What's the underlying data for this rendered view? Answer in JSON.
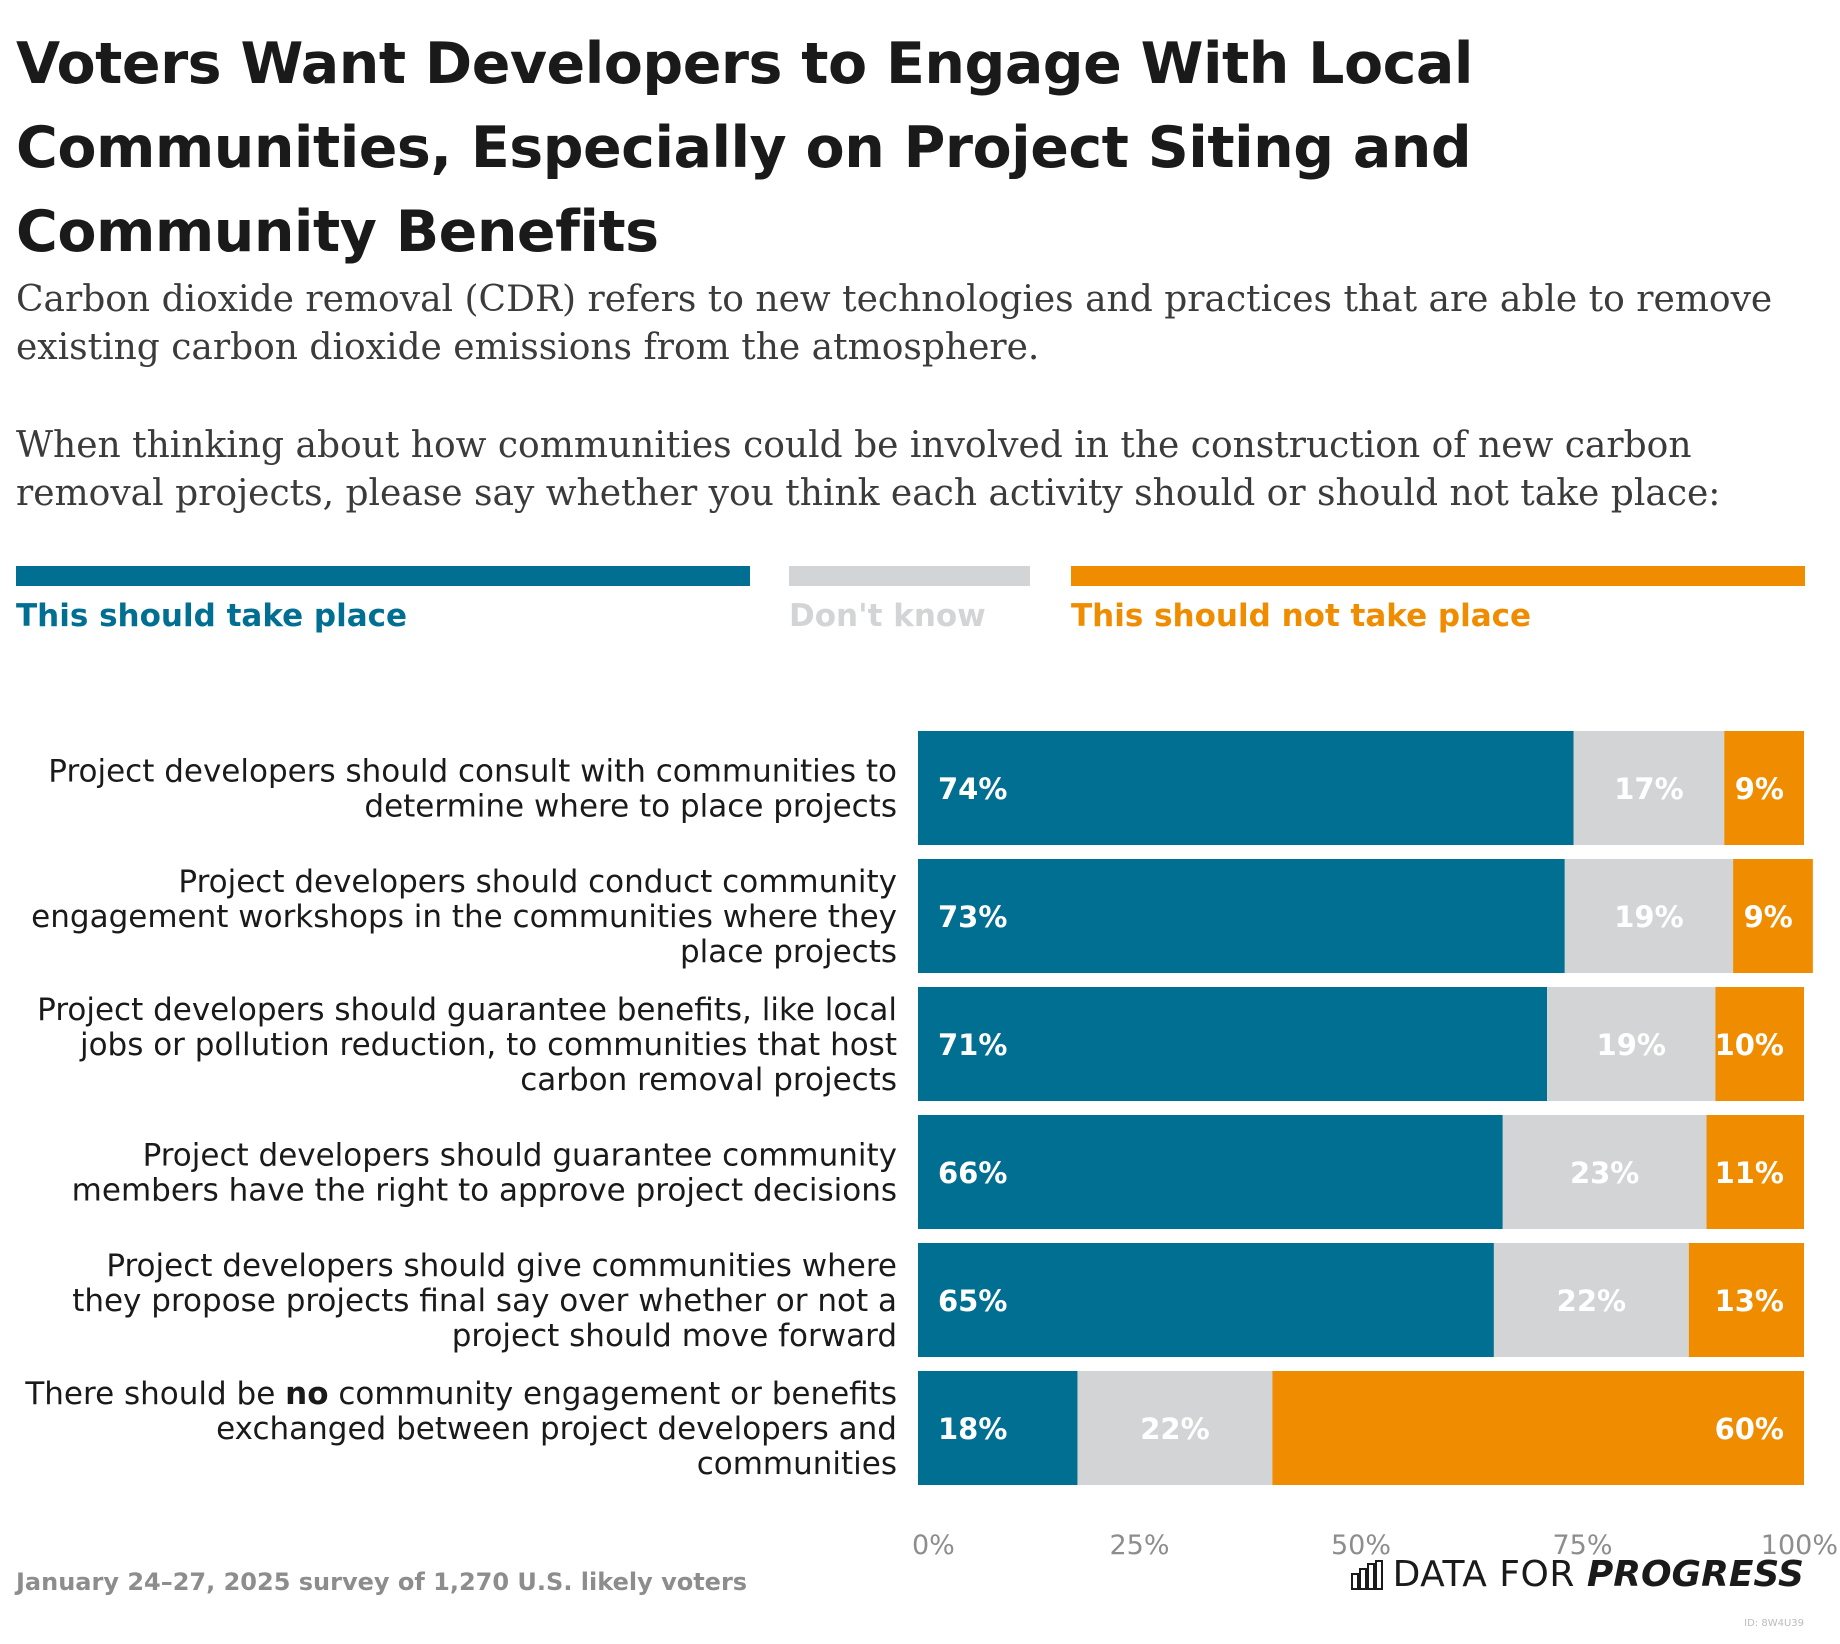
{
  "title": "Voters Want Developers to Engage With Local Communities, Especially on Project Siting and Community Benefits",
  "description": {
    "intro": "Carbon dioxide removal (CDR) refers to new technologies and practices that are able to remove existing carbon dioxide emissions from the atmosphere.",
    "question": "When thinking about how communities could be involved in the construction of new carbon removal projects, please say whether you think each activity should or should not take place:"
  },
  "legend": {
    "support": "This should take place",
    "dontknow": "Don't know",
    "oppose": "This should not take place"
  },
  "colors": {
    "support": "#006f91",
    "dontknow": "#d3d4d5",
    "oppose": "#f08c00",
    "title": "#1a1a1a",
    "muted": "#8d8d8d"
  },
  "chart_data": {
    "type": "bar",
    "orientation": "horizontal",
    "stacked": true,
    "title": "Voters Want Developers to Engage With Local Communities, Especially on Project Siting and Community Benefits",
    "categories": [
      [
        "Project developers should consult with communities to",
        "determine where to place projects"
      ],
      [
        "Project developers should conduct community",
        "engagement workshops in the communities where they",
        "place projects"
      ],
      [
        "Project developers should guarantee benefits, like local",
        "jobs or pollution reduction, to communities that host",
        "carbon removal projects"
      ],
      [
        "Project developers should guarantee community",
        "members have the right to approve project decisions"
      ],
      [
        "Project developers should give communities where",
        "they propose projects final say over whether or not a",
        "project should move forward"
      ],
      [
        "There should be |no| community engagement or benefits",
        "exchanged between project developers and",
        "communities"
      ]
    ],
    "series": [
      {
        "name": "This should take place",
        "key": "support",
        "values": [
          74,
          73,
          71,
          66,
          65,
          18
        ],
        "labels": [
          "74%",
          "73%",
          "71%",
          "66%",
          "65%",
          "18%"
        ]
      },
      {
        "name": "Don't know",
        "key": "dontknow",
        "values": [
          17,
          19,
          19,
          23,
          22,
          22
        ],
        "labels": [
          "17%",
          "19%",
          "19%",
          "23%",
          "22%",
          "22%"
        ]
      },
      {
        "name": "This should not take place",
        "key": "oppose",
        "values": [
          9,
          9,
          10,
          11,
          13,
          60
        ],
        "labels": [
          "9%",
          "9%",
          "10%",
          "11%",
          "13%",
          "60%"
        ]
      }
    ],
    "xlim": [
      0,
      100
    ],
    "xticks": [
      0,
      25,
      50,
      75,
      100
    ],
    "xtick_labels": [
      "0%",
      "25%",
      "50%",
      "75%",
      "100%"
    ],
    "xlabel": "",
    "ylabel": "",
    "legend_position": "top"
  },
  "footer": {
    "note": "January 24–27, 2025 survey of 1,270 U.S. likely voters",
    "brand_light": "DATA FOR",
    "brand_bold": "PROGRESS",
    "chart_id": "ID: 8W4U39"
  }
}
